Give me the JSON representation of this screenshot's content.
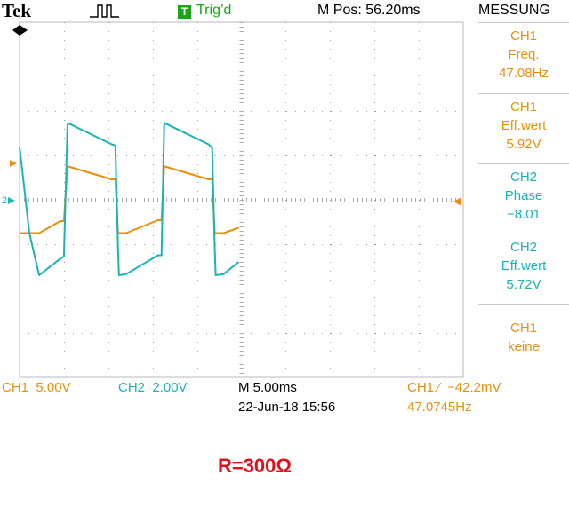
{
  "header": {
    "brand": "Tek",
    "acquire_icon": "run-pulse-icon",
    "trigger_badge": "T",
    "trigger_status": "Trig’d",
    "m_pos": "M Pos: 56.20ms",
    "menu_title": "MESSUNG"
  },
  "measurements": [
    {
      "channel": "CH1",
      "label": "Freq.",
      "value": "47.08Hz",
      "color": "#e8900b"
    },
    {
      "channel": "CH1",
      "label": "Eff.wert",
      "value": "5.92V",
      "color": "#e8900b"
    },
    {
      "channel": "CH2",
      "label": "Phase",
      "value": "−8.01",
      "color": "#1ab3b6"
    },
    {
      "channel": "CH2",
      "label": "Eff.wert",
      "value": "5.72V",
      "color": "#1ab3b6"
    },
    {
      "channel": "CH1",
      "label": "keine",
      "value": "",
      "color": "#e8900b"
    }
  ],
  "markers": {
    "ch2_marker": "2",
    "trigger_position_icon": "arrow-down-icon",
    "trigger_level_icon": "arrow-left-icon"
  },
  "status_bar": {
    "ch1_scale": "CH1  5.00V",
    "ch2_scale": "CH2  2.00V",
    "timebase": "M 5.00ms",
    "date_time": "22-Jun-18 15:56",
    "trigger_readout": "CH1 ⁄  −42.2mV",
    "trigger_freq": "47.0745Hz"
  },
  "caption": "R=300Ω",
  "colors": {
    "ch1": "#e8900b",
    "ch2": "#1ab3b6",
    "trigger": "#1aa41a",
    "caption": "#e0101a"
  },
  "chart_data": {
    "type": "line",
    "x_unit": "ms",
    "x": [
      0,
      1.1,
      2.2,
      4.6,
      5.0,
      5.4,
      5.5,
      10.4,
      10.8,
      11.1,
      11.2,
      12.0,
      15.6,
      16.0,
      16.3,
      16.4,
      21.3,
      21.7,
      22.0,
      22.1,
      23.0,
      24.7
    ],
    "series": [
      {
        "name": "CH1",
        "unit": "V",
        "values": [
          -7.5,
          -7.5,
          -7.5,
          -4.8,
          -4.8,
          7.5,
          7.5,
          4.6,
          4.6,
          -7.5,
          -7.5,
          -7.5,
          -4.6,
          -4.6,
          7.5,
          7.5,
          4.6,
          4.6,
          -7.5,
          -7.5,
          -7.5,
          -6.3
        ]
      },
      {
        "name": "CH2",
        "unit": "V",
        "values": [
          4.8,
          -3.0,
          -6.8,
          -5.3,
          -5.1,
          6.7,
          6.9,
          5.0,
          4.9,
          -4.5,
          -6.8,
          -6.7,
          -5.0,
          -5.0,
          6.7,
          6.9,
          5.0,
          4.7,
          -4.5,
          -6.8,
          -6.7,
          -5.6
        ]
      }
    ]
  }
}
